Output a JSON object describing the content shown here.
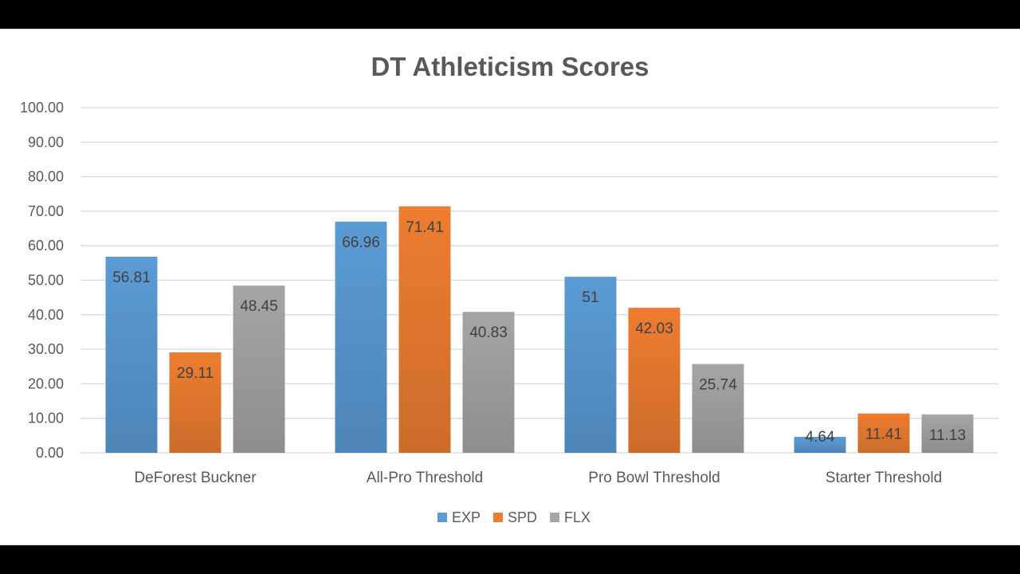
{
  "chart_data": {
    "type": "bar",
    "title": "DT Athleticism Scores",
    "categories": [
      "DeForest Buckner",
      "All-Pro Threshold",
      "Pro Bowl Threshold",
      "Starter Threshold"
    ],
    "series": [
      {
        "name": "EXP",
        "values": [
          56.81,
          66.96,
          51,
          4.64
        ],
        "labels": [
          "56.81",
          "66.96",
          "51",
          "4.64"
        ],
        "color": "#5b9bd5"
      },
      {
        "name": "SPD",
        "values": [
          29.11,
          71.41,
          42.03,
          11.41
        ],
        "labels": [
          "29.11",
          "71.41",
          "42.03",
          "11.41"
        ],
        "color": "#ed7d31"
      },
      {
        "name": "FLX",
        "values": [
          48.45,
          40.83,
          25.74,
          11.13
        ],
        "labels": [
          "48.45",
          "40.83",
          "25.74",
          "11.13"
        ],
        "color": "#a5a5a5"
      }
    ],
    "ylim": [
      0,
      100
    ],
    "yticks": [
      "0.00",
      "10.00",
      "20.00",
      "30.00",
      "40.00",
      "50.00",
      "60.00",
      "70.00",
      "80.00",
      "90.00",
      "100.00"
    ],
    "xlabel": "",
    "ylabel": "",
    "grid": true,
    "legend": "bottom-center"
  }
}
